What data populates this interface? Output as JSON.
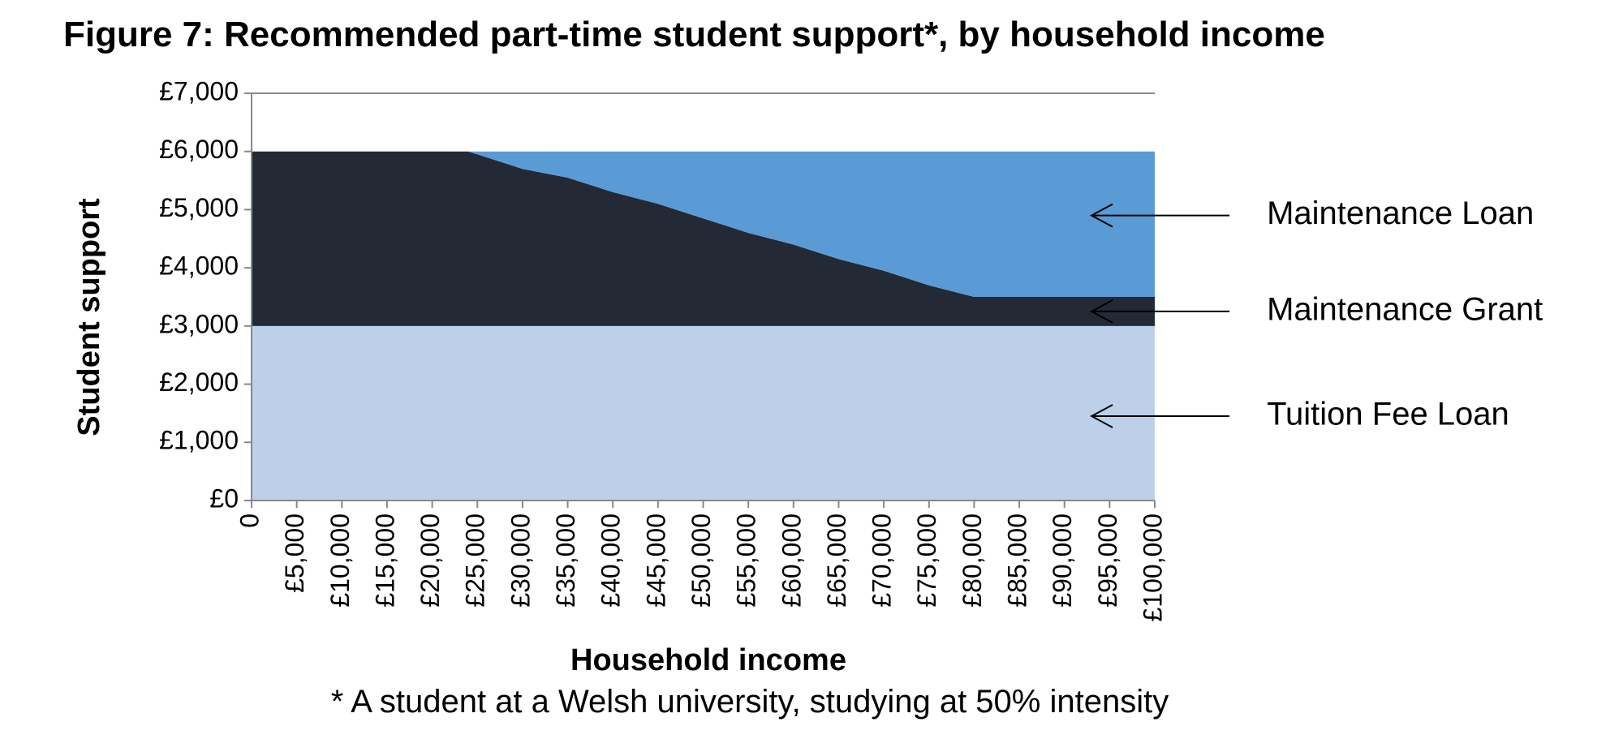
{
  "chart_data": {
    "type": "area",
    "stacked": true,
    "title": "Figure 7: Recommended part-time student support*, by household income",
    "xlabel": "Household income",
    "ylabel": "Student support",
    "xlim": [
      0,
      100000
    ],
    "ylim": [
      0,
      7000
    ],
    "x_tick_labels": [
      "0",
      "£5,000",
      "£10,000",
      "£15,000",
      "£20,000",
      "£25,000",
      "£30,000",
      "£35,000",
      "£40,000",
      "£45,000",
      "£50,000",
      "£55,000",
      "£60,000",
      "£65,000",
      "£70,000",
      "£75,000",
      "£80,000",
      "£85,000",
      "£90,000",
      "£95,000",
      "£100,000"
    ],
    "x_tick_values": [
      0,
      5000,
      10000,
      15000,
      20000,
      25000,
      30000,
      35000,
      40000,
      45000,
      50000,
      55000,
      60000,
      65000,
      70000,
      75000,
      80000,
      85000,
      90000,
      95000,
      100000
    ],
    "y_tick_labels": [
      "£0",
      "£1,000",
      "£2,000",
      "£3,000",
      "£4,000",
      "£5,000",
      "£6,000",
      "£7,000"
    ],
    "y_tick_values": [
      0,
      1000,
      2000,
      3000,
      4000,
      5000,
      6000,
      7000
    ],
    "grid": false,
    "legend": "none",
    "x": [
      0,
      5000,
      10000,
      15000,
      20000,
      24000,
      25000,
      30000,
      35000,
      40000,
      45000,
      50000,
      55000,
      60000,
      65000,
      70000,
      75000,
      80000,
      85000,
      90000,
      95000,
      100000
    ],
    "series": [
      {
        "name": "Tuition Fee Loan",
        "color": "#bdd0ea",
        "values": [
          3000,
          3000,
          3000,
          3000,
          3000,
          3000,
          3000,
          3000,
          3000,
          3000,
          3000,
          3000,
          3000,
          3000,
          3000,
          3000,
          3000,
          3000,
          3000,
          3000,
          3000,
          3000
        ]
      },
      {
        "name": "Maintenance Grant",
        "color": "#232a35",
        "values": [
          3000,
          3000,
          3000,
          3000,
          3000,
          3000,
          2950,
          2700,
          2550,
          2300,
          2100,
          1850,
          1600,
          1400,
          1150,
          950,
          700,
          500,
          500,
          500,
          500,
          500
        ]
      },
      {
        "name": "Maintenance Loan",
        "color": "#5b9bd5",
        "values": [
          0,
          0,
          0,
          0,
          0,
          0,
          50,
          300,
          450,
          700,
          900,
          1150,
          1400,
          1600,
          1850,
          2050,
          2300,
          2500,
          2500,
          2500,
          2500,
          2500
        ]
      }
    ],
    "annotations": [
      {
        "text": "Maintenance Loan",
        "x": 93000,
        "y": 4900
      },
      {
        "text": "Maintenance Grant",
        "x": 93000,
        "y": 3250
      },
      {
        "text": "Tuition Fee Loan",
        "x": 93000,
        "y": 1450
      }
    ]
  },
  "footnote": "* A student at a Welsh university, studying at 50% intensity"
}
